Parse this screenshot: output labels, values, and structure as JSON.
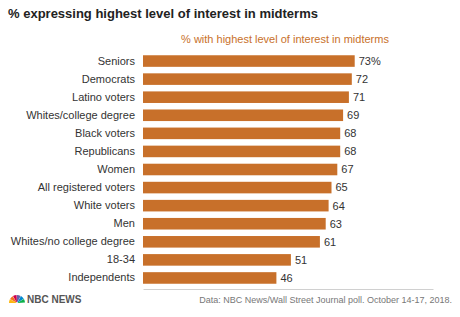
{
  "chart_data": {
    "type": "bar",
    "orientation": "horizontal",
    "title": "% expressing highest level of interest in midterms",
    "subtitle": "% with highest level of interest in midterms",
    "categories": [
      "Seniors",
      "Democrats",
      "Latino voters",
      "Whites/college degree",
      "Black voters",
      "Republicans",
      "Women",
      "All registered voters",
      "White voters",
      "Men",
      "Whites/no college degree",
      "18-34",
      "Independents"
    ],
    "values": [
      73,
      72,
      71,
      69,
      68,
      68,
      67,
      65,
      64,
      63,
      61,
      51,
      46
    ],
    "value_labels": [
      "73%",
      "72",
      "71",
      "69",
      "68",
      "68",
      "67",
      "65",
      "64",
      "63",
      "61",
      "51",
      "46"
    ],
    "color": "#c8702a",
    "xlim": [
      0,
      100
    ],
    "xticks": [],
    "tick_labels": "y",
    "grid": false,
    "data_labels": true,
    "logo": "NBC NEWS",
    "source": "Data: NBC News/Wall Street Journal poll. October 14-17, 2018."
  }
}
